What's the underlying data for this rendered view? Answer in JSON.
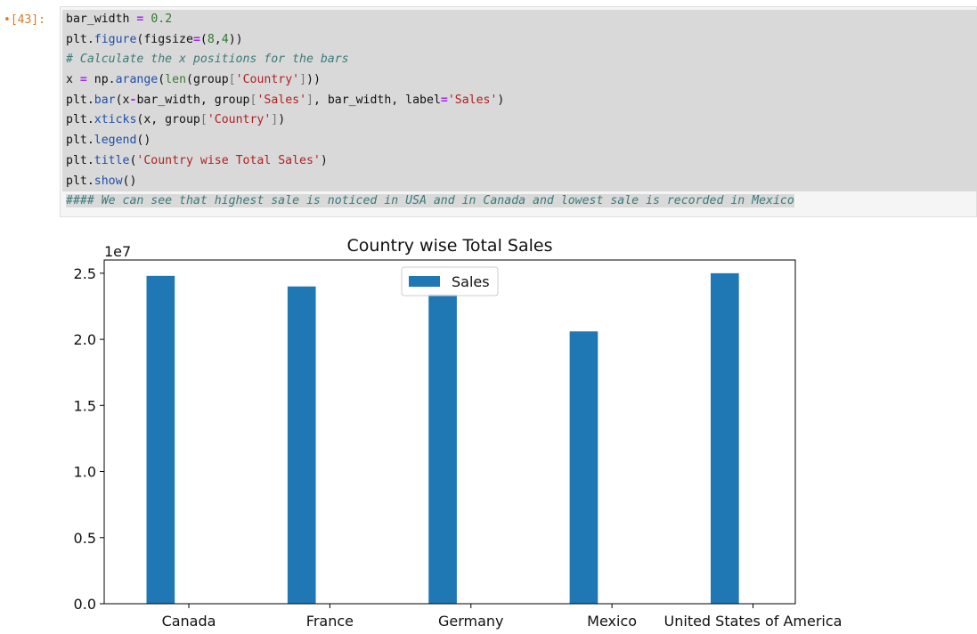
{
  "cell": {
    "prompt_marker": "•",
    "prompt": "[43]:",
    "lines": [
      [
        [
          "bar_width ",
          ""
        ],
        [
          "=",
          "op"
        ],
        [
          " ",
          ""
        ],
        [
          "0.2",
          "num"
        ]
      ],
      [
        [
          "plt.",
          ""
        ],
        [
          "figure",
          "fn"
        ],
        [
          "(figsize",
          ""
        ],
        [
          "=",
          "op"
        ],
        [
          "(",
          ""
        ],
        [
          "8",
          "num"
        ],
        [
          ",",
          ""
        ],
        [
          "4",
          "num"
        ],
        [
          "))",
          ""
        ]
      ],
      [
        [
          "# Calculate the x positions for the bars",
          "cm"
        ]
      ],
      [
        [
          "x ",
          ""
        ],
        [
          "=",
          "op"
        ],
        [
          " np.",
          ""
        ],
        [
          "arange",
          "fn"
        ],
        [
          "(",
          ""
        ],
        [
          "len",
          "kw"
        ],
        [
          "(group",
          ""
        ],
        [
          "[",
          "br"
        ],
        [
          "'Country'",
          "str"
        ],
        [
          "]",
          "br"
        ],
        [
          "))",
          ""
        ]
      ],
      [
        [
          "plt.",
          ""
        ],
        [
          "bar",
          "fn"
        ],
        [
          "(x",
          ""
        ],
        [
          "-",
          "op"
        ],
        [
          "bar_width, group",
          ""
        ],
        [
          "[",
          "br"
        ],
        [
          "'Sales'",
          "str"
        ],
        [
          "]",
          "br"
        ],
        [
          ", bar_width, label",
          ""
        ],
        [
          "=",
          "op"
        ],
        [
          "'Sales'",
          "str"
        ],
        [
          ")",
          ""
        ]
      ],
      [
        [
          "plt.",
          ""
        ],
        [
          "xticks",
          "fn"
        ],
        [
          "(x, group",
          ""
        ],
        [
          "[",
          "br"
        ],
        [
          "'Country'",
          "str"
        ],
        [
          "]",
          "br"
        ],
        [
          ")",
          ""
        ]
      ],
      [
        [
          "plt.",
          ""
        ],
        [
          "legend",
          "fn"
        ],
        [
          "()",
          ""
        ]
      ],
      [
        [
          "plt.",
          ""
        ],
        [
          "title",
          "fn"
        ],
        [
          "(",
          ""
        ],
        [
          "'Country wise Total Sales'",
          "str"
        ],
        [
          ")",
          ""
        ]
      ],
      [
        [
          "plt.",
          ""
        ],
        [
          "show",
          "fn"
        ],
        [
          "()",
          ""
        ]
      ],
      [
        [
          "#### We can see that highest sale is noticed in USA and in Canada and lowest sale is recorded in Mexico",
          "cm"
        ]
      ]
    ]
  },
  "chart_data": {
    "type": "bar",
    "title": "Country wise Total Sales",
    "offset_label": "1e7",
    "categories": [
      "Canada",
      "France",
      "Germany",
      "Mexico",
      "United States of America"
    ],
    "series": [
      {
        "name": "Sales",
        "values": [
          24.8,
          24.0,
          23.4,
          20.6,
          25.0
        ],
        "color": "#1f77b4"
      }
    ],
    "ylim": [
      0,
      26
    ],
    "yticks": [
      0.0,
      5.0,
      10.0,
      15.0,
      20.0,
      25.0
    ],
    "ytick_labels": [
      "0.0",
      "0.5",
      "1.0",
      "1.5",
      "2.0",
      "2.5"
    ],
    "legend_placement": "upper-center",
    "grid": false
  }
}
